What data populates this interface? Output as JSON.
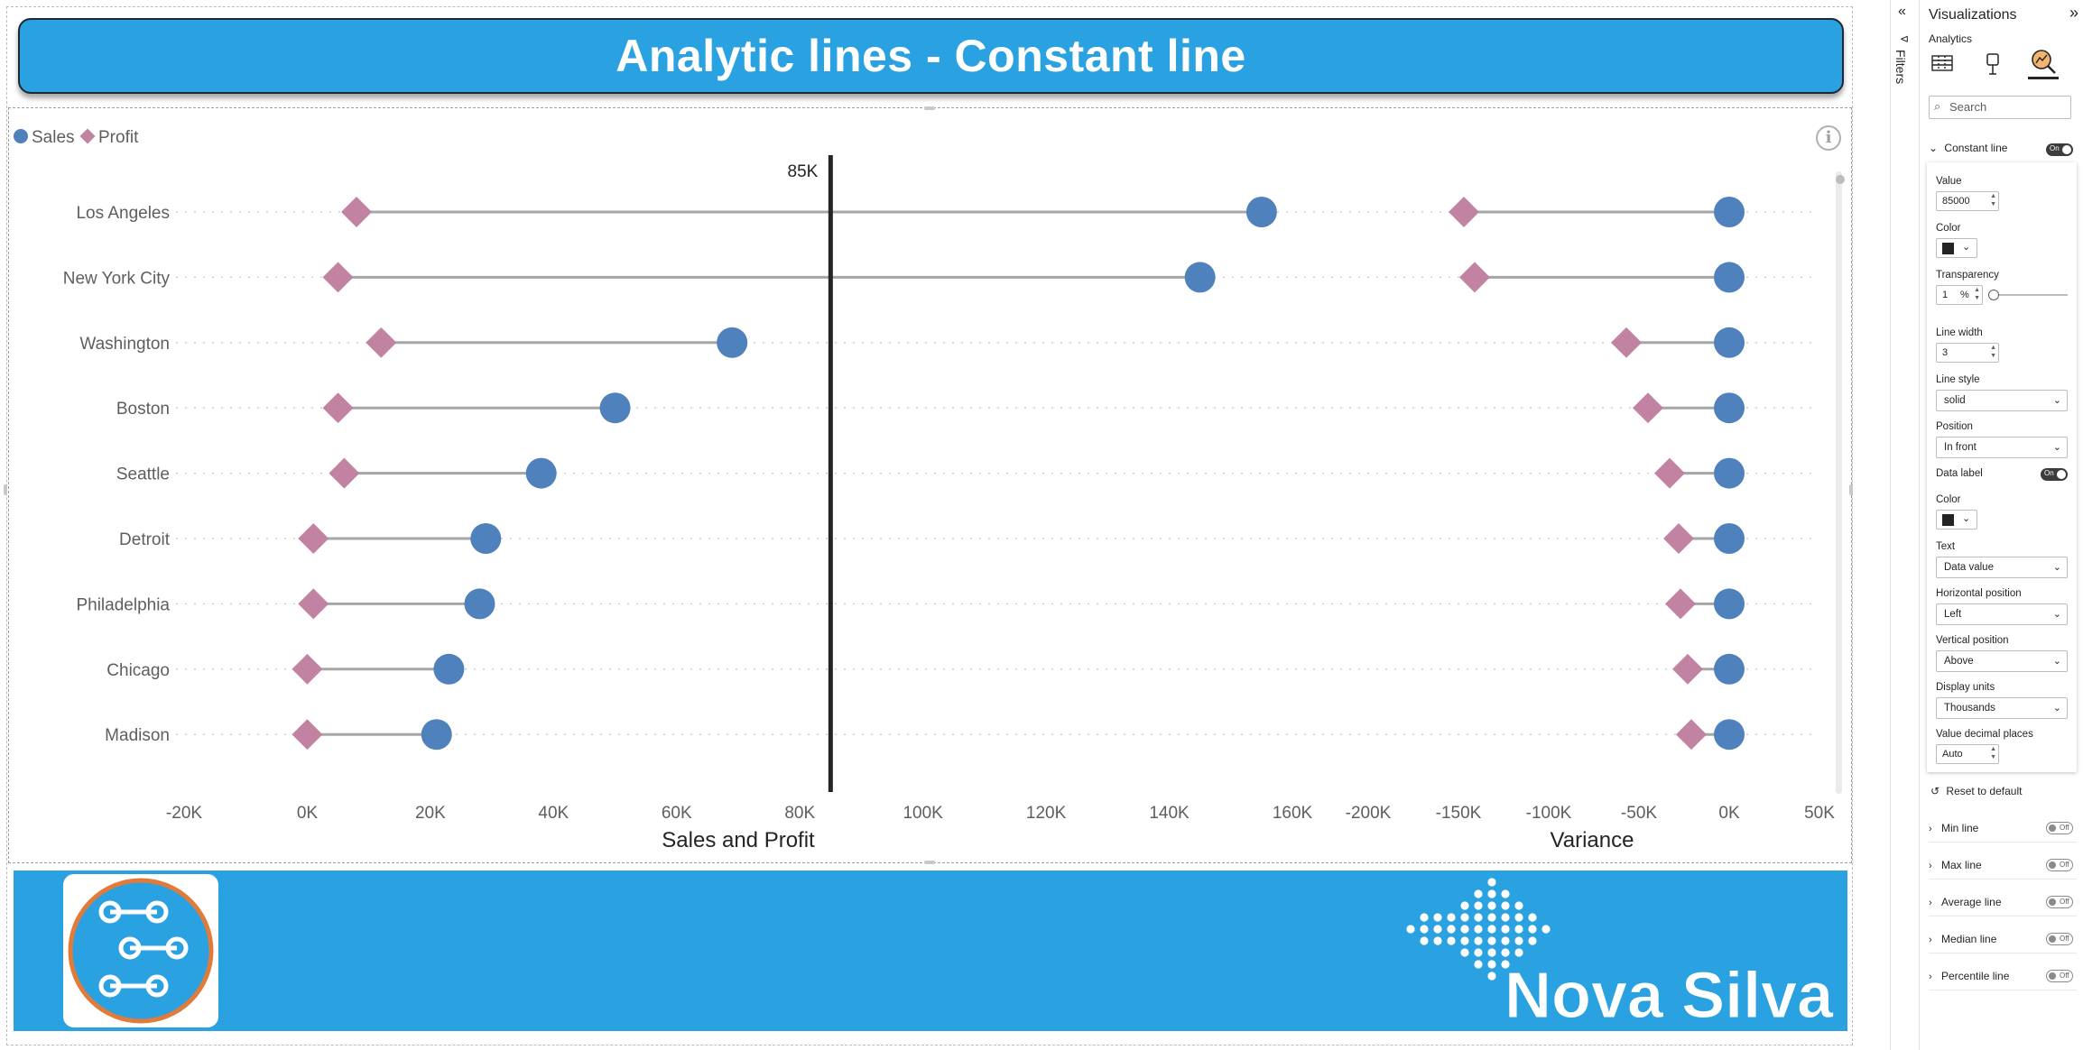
{
  "report": {
    "title": "Analytic lines - Constant line"
  },
  "legend": [
    {
      "name": "Sales",
      "color": "#4f81bd",
      "shape": "circle"
    },
    {
      "name": "Profit",
      "color": "#c283a3",
      "shape": "diamond"
    }
  ],
  "chart_data": [
    {
      "type": "dot-plot",
      "xlabel": "Sales and Profit",
      "xlim": [
        -20000,
        160000
      ],
      "x_ticks": [
        "-20K",
        "0K",
        "20K",
        "40K",
        "60K",
        "80K",
        "100K",
        "120K",
        "140K",
        "160K"
      ],
      "categories": [
        "Los Angeles",
        "New York City",
        "Washington",
        "Boston",
        "Seattle",
        "Detroit",
        "Philadelphia",
        "Chicago",
        "Madison"
      ],
      "series": [
        {
          "name": "Sales",
          "values": [
            155000,
            145000,
            69000,
            50000,
            38000,
            29000,
            28000,
            23000,
            21000
          ]
        },
        {
          "name": "Profit",
          "values": [
            8000,
            5000,
            12000,
            5000,
            6000,
            1000,
            1000,
            0,
            0
          ]
        }
      ],
      "constant_line": {
        "value": 85000,
        "label": "85K",
        "color": "#252423"
      }
    },
    {
      "type": "dot-plot",
      "xlabel": "Variance",
      "xlim": [
        -200000,
        50000
      ],
      "x_ticks": [
        "-200K",
        "-150K",
        "-100K",
        "-50K",
        "0K",
        "50K"
      ],
      "categories": [
        "Los Angeles",
        "New York City",
        "Washington",
        "Boston",
        "Seattle",
        "Detroit",
        "Philadelphia",
        "Chicago",
        "Madison"
      ],
      "series": [
        {
          "name": "Sales",
          "values": [
            0,
            0,
            0,
            0,
            0,
            0,
            0,
            0,
            0
          ]
        },
        {
          "name": "Profit",
          "values": [
            -147000,
            -141000,
            -57000,
            -45000,
            -33000,
            -28000,
            -27000,
            -23000,
            -21000
          ]
        }
      ]
    }
  ],
  "footer": {
    "brand": "Nova Silva"
  },
  "filters": {
    "label": "Filters"
  },
  "pane": {
    "title": "Visualizations",
    "subtitle": "Analytics",
    "search_placeholder": "Search",
    "constant_line": {
      "header": "Constant line",
      "toggle": "On",
      "value_label": "Value",
      "value": "85000",
      "color_label": "Color",
      "transparency_label": "Transparency",
      "transparency": "1",
      "transparency_unit": "%",
      "line_width_label": "Line width",
      "line_width": "3",
      "line_style_label": "Line style",
      "line_style": "solid",
      "position_label": "Position",
      "position": "In front",
      "data_label_label": "Data label",
      "data_label_toggle": "On",
      "label_color_label": "Color",
      "text_label": "Text",
      "text": "Data value",
      "hpos_label": "Horizontal position",
      "hpos": "Left",
      "vpos_label": "Vertical position",
      "vpos": "Above",
      "units_label": "Display units",
      "units": "Thousands",
      "decimals_label": "Value decimal places",
      "decimals": "Auto"
    },
    "reset": "Reset to default",
    "sections": [
      {
        "label": "Min line",
        "toggle": "Off"
      },
      {
        "label": "Max line",
        "toggle": "Off"
      },
      {
        "label": "Average line",
        "toggle": "Off"
      },
      {
        "label": "Median line",
        "toggle": "Off"
      },
      {
        "label": "Percentile line",
        "toggle": "Off"
      }
    ]
  }
}
